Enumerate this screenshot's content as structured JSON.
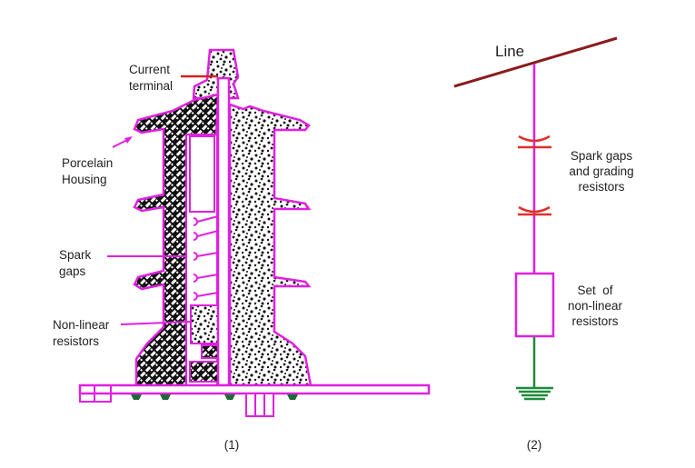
{
  "colors": {
    "outline": "#e020e0",
    "line": "#8b1a1a",
    "gap": "#e0302a",
    "ground": "#1f8a3a",
    "terminal": "#d42020"
  },
  "figure1": {
    "labels": {
      "current_terminal": [
        "Current",
        "terminal"
      ],
      "porcelain_housing": [
        "Porcelain",
        "Housing"
      ],
      "spark_gaps": [
        "Spark",
        "gaps"
      ],
      "non_linear_resistors": [
        "Non-linear",
        "resistors"
      ]
    },
    "caption": "(1)"
  },
  "figure2": {
    "line_label": "Line",
    "spark_gaps_label": [
      "Spark gaps",
      "and grading",
      "resistors"
    ],
    "resistor_label": [
      "Set  of",
      "non-linear",
      "resistors"
    ],
    "caption": "(2)"
  }
}
